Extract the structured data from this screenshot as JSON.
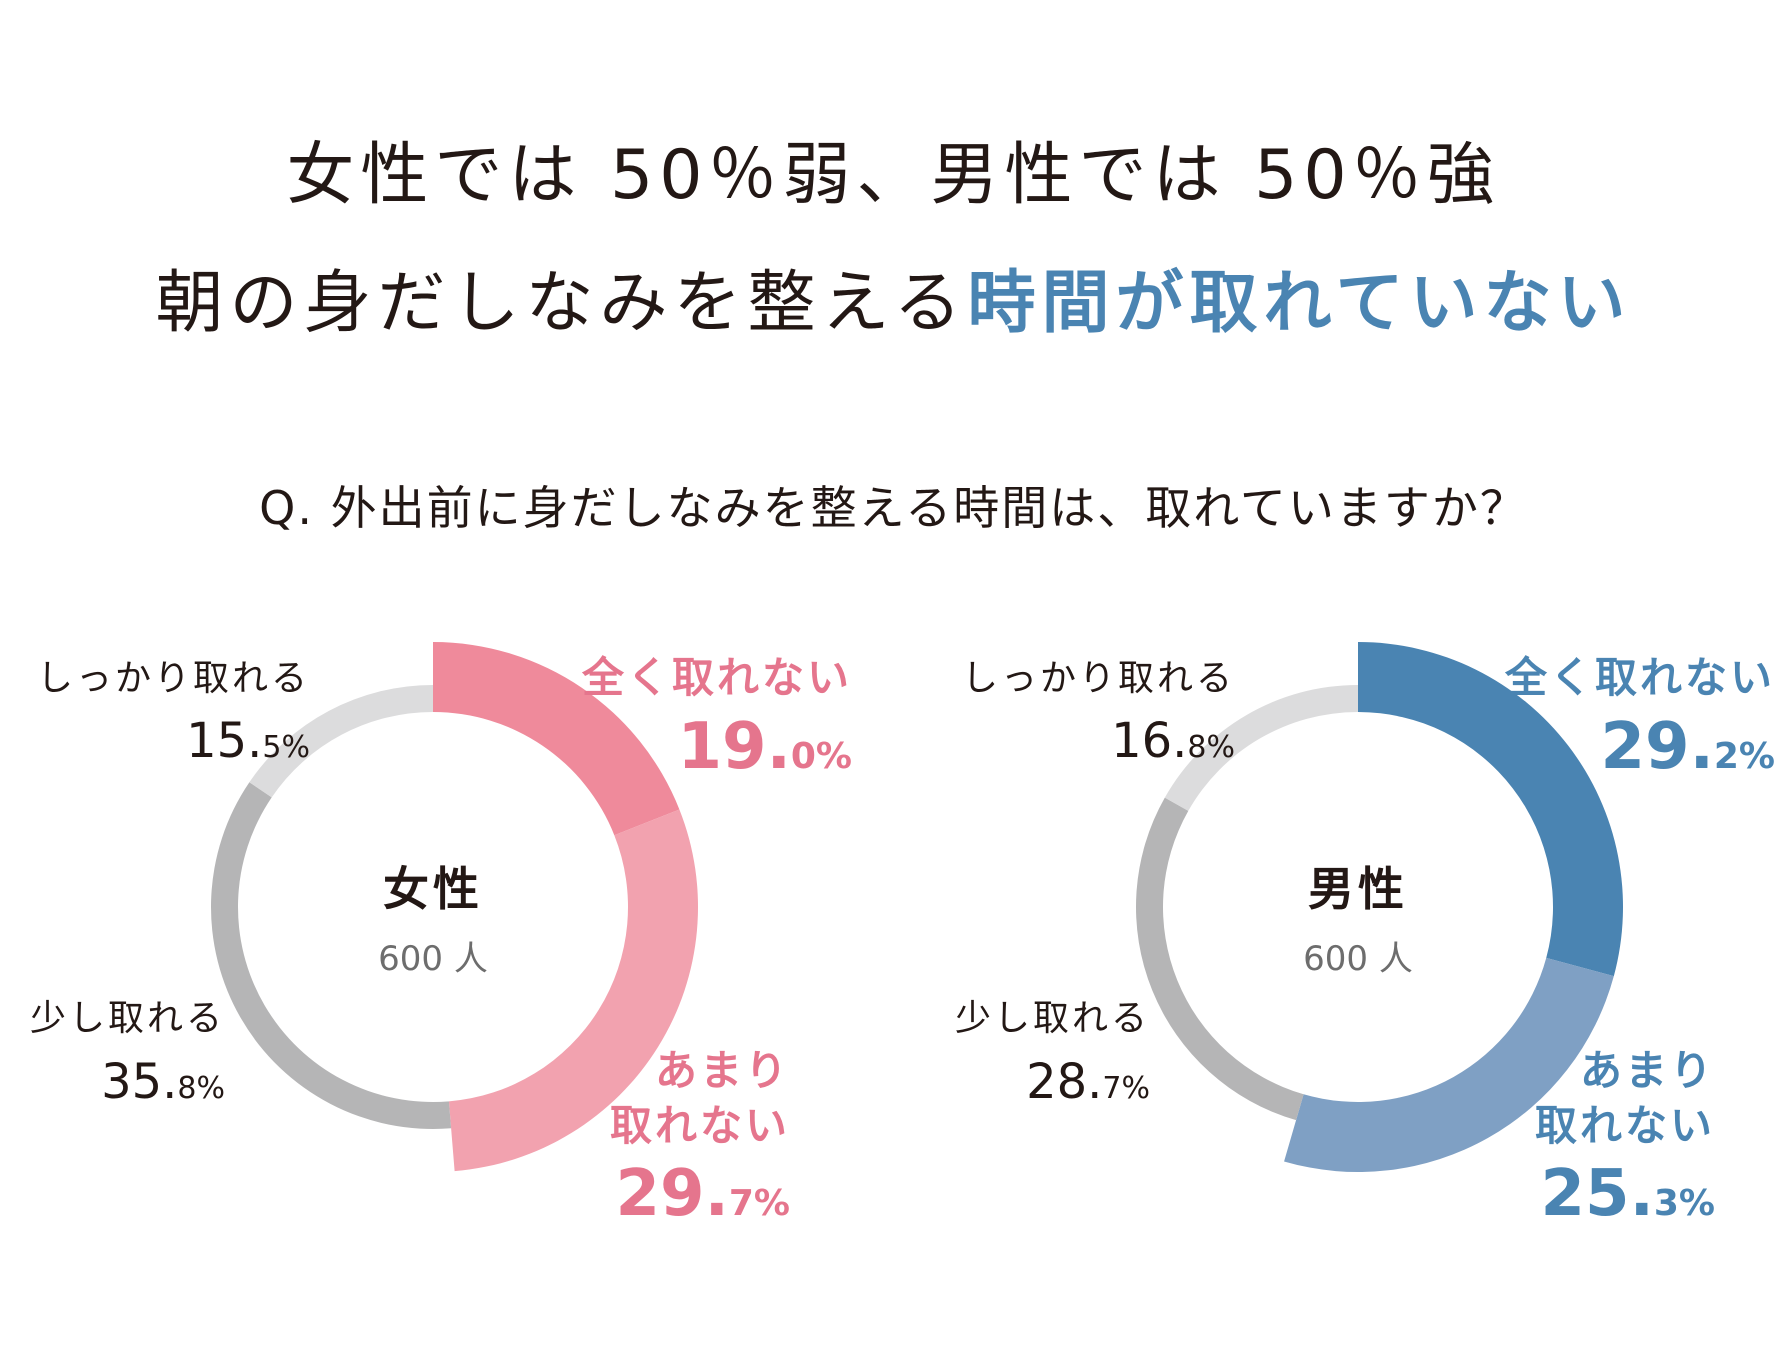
{
  "headline": {
    "line1": "女性では 50％弱、男性では 50％強",
    "line2_plain": "朝の身だしなみを整える",
    "line2_accent": "時間が取れていない"
  },
  "question": "Q. 外出前に身だしなみを整える時間は、取れていますか？",
  "colors": {
    "text": "#231815",
    "accent_blue": "#4a84b2",
    "pink_text": "#e5758d"
  },
  "chart_data": [
    {
      "type": "pie",
      "style": "donut",
      "center_label": "女性",
      "center_count": "600 人",
      "series": [
        {
          "name": "全く取れない",
          "value": 19.0,
          "color": "#ef8a9b",
          "label_color": "#e5758d"
        },
        {
          "name": "あまり取れない",
          "value": 29.7,
          "color": "#f2a2af",
          "label_color": "#e5758d"
        },
        {
          "name": "少し取れる",
          "value": 35.8,
          "color": "#b5b5b6",
          "label_color": "#231815"
        },
        {
          "name": "しっかり取れる",
          "value": 15.5,
          "color": "#dcdcdd",
          "label_color": "#231815"
        }
      ]
    },
    {
      "type": "pie",
      "style": "donut",
      "center_label": "男性",
      "center_count": "600 人",
      "series": [
        {
          "name": "全く取れない",
          "value": 29.2,
          "color": "#4a84b2",
          "label_color": "#4a84b2"
        },
        {
          "name": "あまり取れない",
          "value": 25.3,
          "color": "#7fa0c4",
          "label_color": "#4a84b2"
        },
        {
          "name": "少し取れる",
          "value": 28.7,
          "color": "#b5b5b6",
          "label_color": "#231815"
        },
        {
          "name": "しっかり取れる",
          "value": 16.8,
          "color": "#dcdcdd",
          "label_color": "#231815"
        }
      ]
    }
  ]
}
